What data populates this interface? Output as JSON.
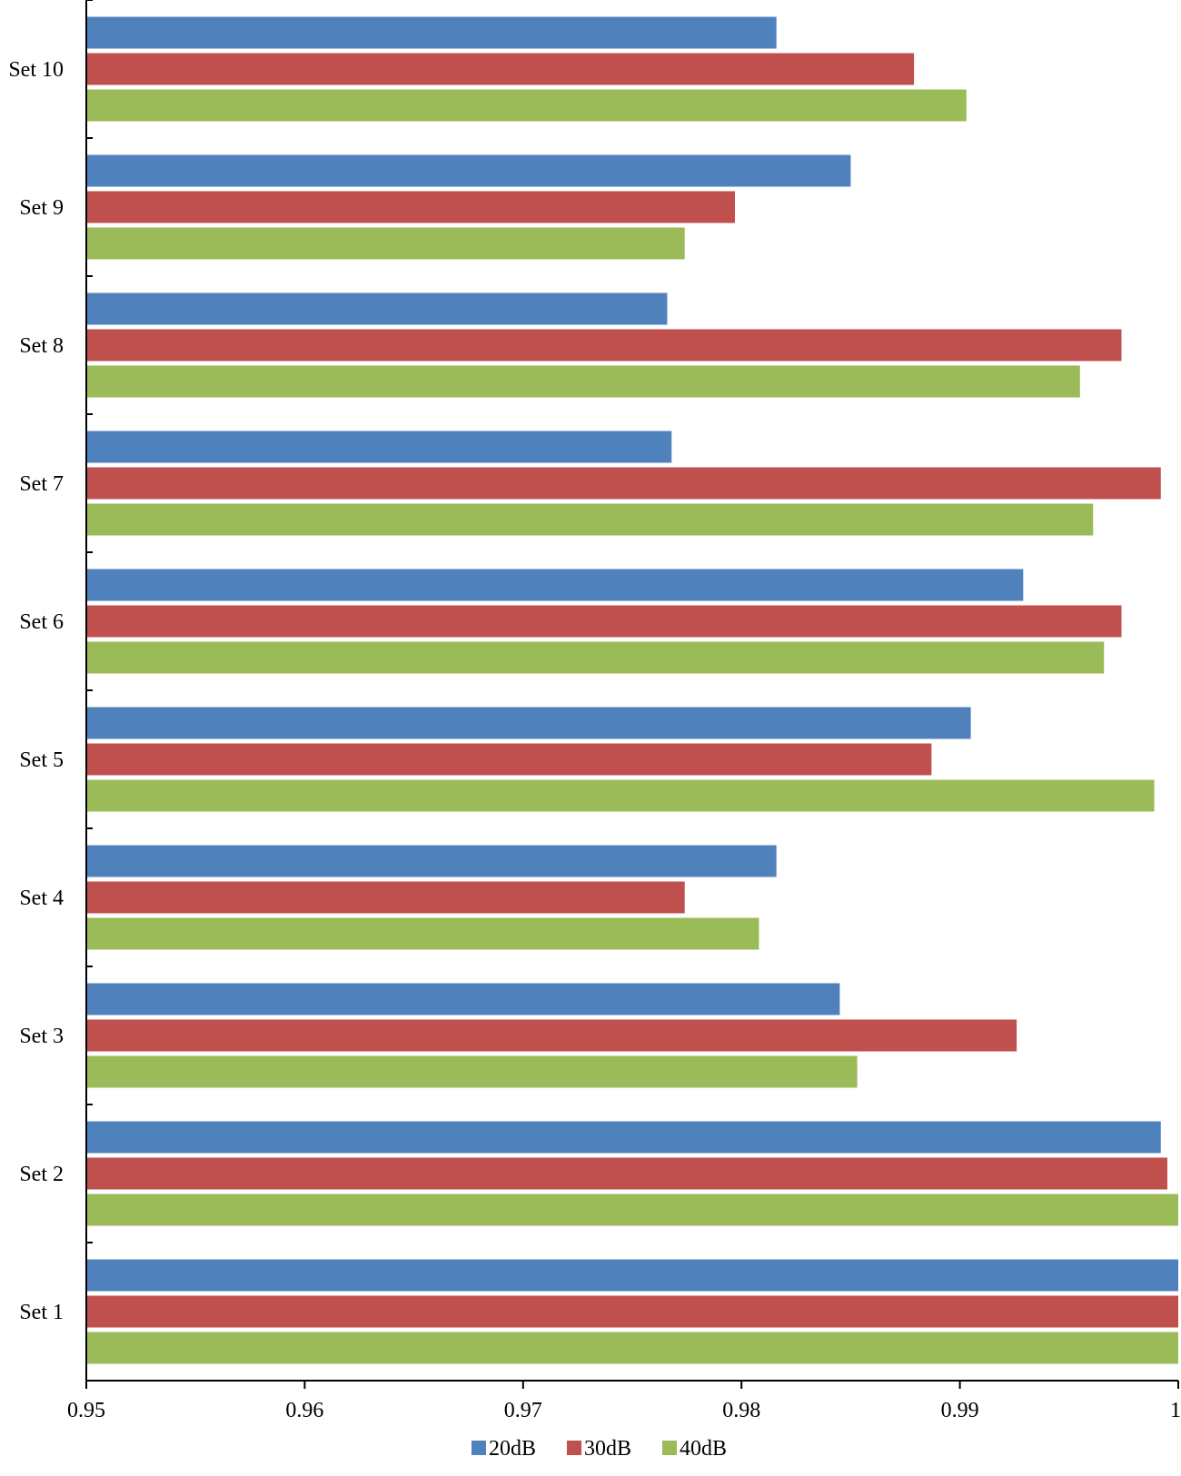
{
  "chart_data": {
    "type": "bar",
    "orientation": "horizontal",
    "title": "",
    "xlabel": "",
    "ylabel": "",
    "xlim": [
      0.95,
      1.0
    ],
    "x_ticks": [
      0.95,
      0.96,
      0.97,
      0.98,
      0.99,
      1.0
    ],
    "x_tick_labels": [
      "0.95",
      "0.96",
      "0.97",
      "0.98",
      "0.99",
      "1"
    ],
    "grid": false,
    "legend_position": "bottom",
    "categories": [
      "Set 1",
      "Set 2",
      "Set 3",
      "Set 4",
      "Set 5",
      "Set 6",
      "Set 7",
      "Set 8",
      "Set 9",
      "Set 10"
    ],
    "series": [
      {
        "name": "20dB",
        "color": "#4F81BD",
        "values": [
          1.0,
          0.9992,
          0.9845,
          0.9816,
          0.9905,
          0.9929,
          0.9768,
          0.9766,
          0.985,
          0.9816
        ]
      },
      {
        "name": "30dB",
        "color": "#C0504D",
        "values": [
          1.0,
          0.9995,
          0.9926,
          0.9774,
          0.9887,
          0.9974,
          0.9992,
          0.9974,
          0.9797,
          0.9879
        ]
      },
      {
        "name": "40dB",
        "color": "#9BBB59",
        "values": [
          1.0,
          1.0,
          0.9853,
          0.9808,
          0.9989,
          0.9966,
          0.9961,
          0.9955,
          0.9774,
          0.9903
        ]
      }
    ]
  }
}
